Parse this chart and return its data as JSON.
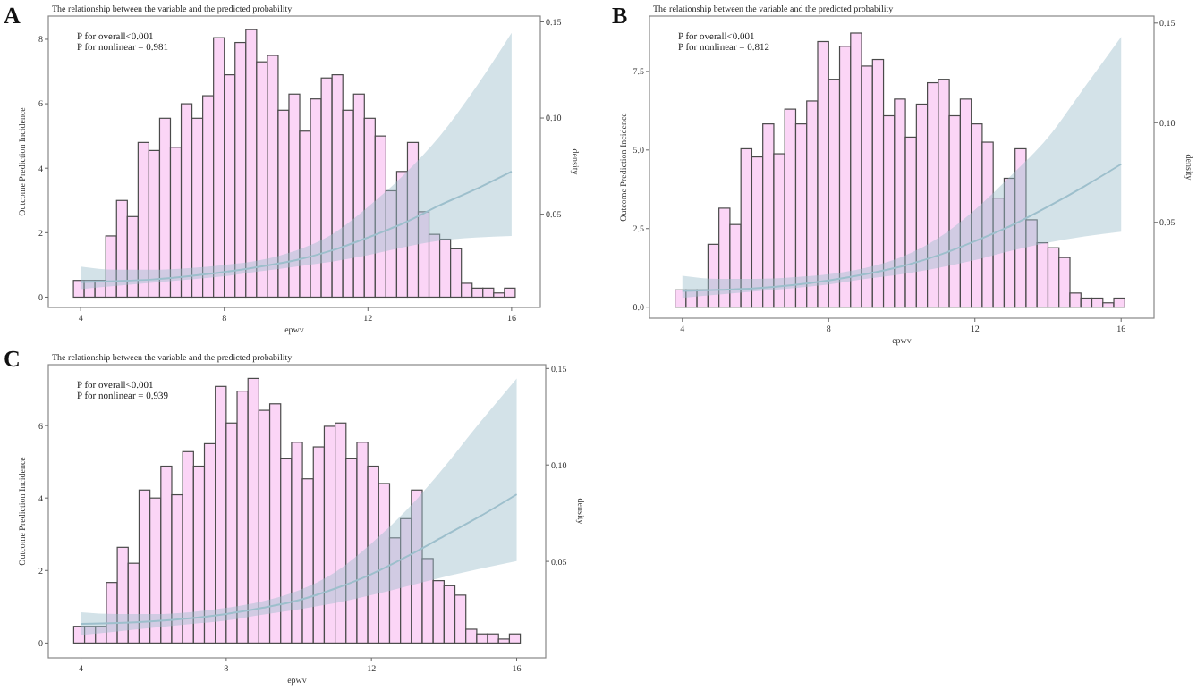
{
  "chart_data": [
    {
      "type": "histogram",
      "title": "The relationship between the variable and the predicted probability",
      "xlabel": "epwv",
      "ylabel": "Outcome Prediction Incidence",
      "y2label": "density",
      "annotations": [
        "A",
        "P for overall<0.001",
        "P for nonlinear = 0.981"
      ],
      "xlim": [
        3.1,
        16.8
      ],
      "xticks": [
        4,
        8,
        12,
        16
      ],
      "ylim": [
        -0.32,
        8.72
      ],
      "yticks": [
        0,
        2,
        4,
        6,
        8
      ],
      "y2lim": [
        0.0015,
        0.153
      ],
      "y2ticks": [
        {
          "value": 0.05,
          "label": "0.05"
        },
        {
          "value": 0.1,
          "label": "0.10"
        },
        {
          "value": 0.15,
          "label": "0.15"
        }
      ],
      "grid": false,
      "series": [
        {
          "color": "#fbd5f6",
          "bins": [
            3.8,
            4.1,
            4.4,
            4.7,
            5.0,
            5.3,
            5.6,
            5.9,
            6.2,
            6.5,
            6.8,
            7.1,
            7.4,
            7.7,
            8.0,
            8.3,
            8.6,
            8.9,
            9.2,
            9.5,
            9.8,
            10.1,
            10.4,
            10.7,
            11.0,
            11.3,
            11.6,
            11.9,
            12.2,
            12.5,
            12.8,
            13.1,
            13.4,
            13.7,
            14.0,
            14.3,
            14.6,
            14.9,
            15.2,
            15.5,
            15.8,
            16.1
          ],
          "values": [
            0.52,
            0.52,
            0.52,
            1.9,
            3.0,
            2.5,
            4.8,
            4.55,
            5.55,
            4.65,
            6.0,
            5.55,
            6.25,
            8.05,
            6.9,
            7.9,
            8.3,
            7.3,
            7.5,
            5.8,
            6.3,
            5.15,
            6.15,
            6.8,
            6.9,
            5.8,
            6.3,
            5.55,
            5.0,
            3.3,
            3.9,
            4.8,
            2.65,
            1.95,
            1.8,
            1.5,
            0.43,
            0.28,
            0.28,
            0.13,
            0.28
          ]
        },
        {
          "type": "line",
          "color": "#9dbfcc",
          "x": [
            4,
            5,
            6,
            7,
            8,
            9,
            10,
            11,
            12,
            13,
            14,
            15,
            16
          ],
          "values": [
            0.47,
            0.5,
            0.55,
            0.65,
            0.78,
            0.95,
            1.15,
            1.45,
            1.85,
            2.3,
            2.85,
            3.35,
            3.9
          ],
          "lower": [
            0.25,
            0.35,
            0.45,
            0.55,
            0.65,
            0.8,
            0.95,
            1.1,
            1.3,
            1.55,
            1.75,
            1.85,
            1.9
          ],
          "upper": [
            0.95,
            0.85,
            0.85,
            0.9,
            1.0,
            1.15,
            1.45,
            1.95,
            2.8,
            3.8,
            5.0,
            6.5,
            8.2
          ]
        }
      ]
    },
    {
      "type": "histogram",
      "title": "The relationship between the variable and the predicted probability",
      "xlabel": "epwv",
      "ylabel": "Outcome Prediction Incidence",
      "y2label": "density",
      "annotations": [
        "B",
        "P for overall<0.001",
        "P for nonlinear = 0.812"
      ],
      "xlim": [
        3.1,
        16.9
      ],
      "xticks": [
        4,
        8,
        12,
        16
      ],
      "ylim": [
        -0.35,
        9.26
      ],
      "yticks": [
        {
          "value": 0,
          "label": "0.0"
        },
        {
          "value": 2.5,
          "label": "2.5"
        },
        {
          "value": 5,
          "label": "5.0"
        },
        {
          "value": 7.5,
          "label": "7.5"
        }
      ],
      "y2lim": [
        0.0019,
        0.1535
      ],
      "y2ticks": [
        {
          "value": 0.05,
          "label": "0.05"
        },
        {
          "value": 0.1,
          "label": "0.10"
        },
        {
          "value": 0.15,
          "label": "0.15"
        }
      ],
      "grid": false,
      "series": [
        {
          "color": "#fbd5f6",
          "bins": [
            3.8,
            4.1,
            4.4,
            4.7,
            5.0,
            5.3,
            5.6,
            5.9,
            6.2,
            6.5,
            6.8,
            7.1,
            7.4,
            7.7,
            8.0,
            8.3,
            8.6,
            8.9,
            9.2,
            9.5,
            9.8,
            10.1,
            10.4,
            10.7,
            11.0,
            11.3,
            11.6,
            11.9,
            12.2,
            12.5,
            12.8,
            13.1,
            13.4,
            13.7,
            14.0,
            14.3,
            14.6,
            14.9,
            15.2,
            15.5,
            15.8,
            16.1
          ],
          "values": [
            0.55,
            0.55,
            0.55,
            2.0,
            3.15,
            2.63,
            5.04,
            4.78,
            5.83,
            4.88,
            6.3,
            5.83,
            6.56,
            8.45,
            7.25,
            8.3,
            8.72,
            7.67,
            7.88,
            6.09,
            6.62,
            5.41,
            6.46,
            7.14,
            7.25,
            6.09,
            6.62,
            5.83,
            5.25,
            3.47,
            4.1,
            5.04,
            2.78,
            2.05,
            1.89,
            1.58,
            0.45,
            0.29,
            0.29,
            0.14,
            0.29
          ]
        },
        {
          "type": "line",
          "color": "#9dbfcc",
          "x": [
            4,
            5,
            6,
            7,
            8,
            9,
            10,
            11,
            12,
            13,
            14,
            15,
            16
          ],
          "values": [
            0.52,
            0.55,
            0.6,
            0.7,
            0.85,
            1.05,
            1.3,
            1.65,
            2.1,
            2.6,
            3.2,
            3.85,
            4.55
          ],
          "lower": [
            0.3,
            0.4,
            0.5,
            0.6,
            0.72,
            0.9,
            1.05,
            1.25,
            1.5,
            1.8,
            2.05,
            2.25,
            2.4
          ],
          "upper": [
            1.0,
            0.9,
            0.9,
            0.95,
            1.05,
            1.25,
            1.6,
            2.2,
            3.1,
            4.2,
            5.4,
            7.0,
            8.6
          ]
        }
      ]
    },
    {
      "type": "histogram",
      "title": "The relationship between the variable and the predicted probability",
      "xlabel": "epwv",
      "ylabel": "Outcome Prediction Incidence",
      "y2label": "density",
      "annotations": [
        "C",
        "P for overall<0.001",
        "P for nonlinear = 0.939"
      ],
      "xlim": [
        3.1,
        16.8
      ],
      "xticks": [
        4,
        8,
        12,
        16
      ],
      "ylim": [
        -0.41,
        7.68
      ],
      "yticks": [
        0,
        2,
        4,
        6
      ],
      "y2lim": [
        0.0,
        0.152
      ],
      "y2ticks": [
        {
          "value": 0.05,
          "label": "0.05"
        },
        {
          "value": 0.1,
          "label": "0.10"
        },
        {
          "value": 0.15,
          "label": "0.15"
        }
      ],
      "grid": false,
      "series": [
        {
          "color": "#fbd5f6",
          "bins": [
            3.8,
            4.1,
            4.4,
            4.7,
            5.0,
            5.3,
            5.6,
            5.9,
            6.2,
            6.5,
            6.8,
            7.1,
            7.4,
            7.7,
            8.0,
            8.3,
            8.6,
            8.9,
            9.2,
            9.5,
            9.8,
            10.1,
            10.4,
            10.7,
            11.0,
            11.3,
            11.6,
            11.9,
            12.2,
            12.5,
            12.8,
            13.1,
            13.4,
            13.7,
            14.0,
            14.3,
            14.6,
            14.9,
            15.2,
            15.5,
            15.8,
            16.1
          ],
          "values": [
            0.46,
            0.46,
            0.46,
            1.67,
            2.64,
            2.2,
            4.22,
            4.0,
            4.88,
            4.09,
            5.28,
            4.88,
            5.5,
            7.08,
            6.07,
            6.95,
            7.3,
            6.42,
            6.6,
            5.1,
            5.54,
            4.53,
            5.41,
            5.98,
            6.07,
            5.1,
            5.54,
            4.88,
            4.4,
            2.9,
            3.43,
            4.22,
            2.33,
            1.72,
            1.58,
            1.32,
            0.38,
            0.25,
            0.25,
            0.11,
            0.25
          ]
        },
        {
          "type": "line",
          "color": "#9dbfcc",
          "x": [
            4,
            5,
            6,
            7,
            8,
            9,
            10,
            11,
            12,
            13,
            14,
            15,
            16
          ],
          "values": [
            0.53,
            0.55,
            0.6,
            0.68,
            0.8,
            0.97,
            1.18,
            1.5,
            1.9,
            2.4,
            2.95,
            3.5,
            4.1
          ],
          "lower": [
            0.22,
            0.32,
            0.42,
            0.52,
            0.62,
            0.78,
            0.93,
            1.1,
            1.32,
            1.57,
            1.82,
            2.05,
            2.26
          ],
          "upper": [
            0.85,
            0.8,
            0.8,
            0.85,
            0.97,
            1.15,
            1.45,
            1.95,
            2.75,
            3.7,
            4.85,
            6.1,
            7.3
          ]
        }
      ]
    }
  ]
}
